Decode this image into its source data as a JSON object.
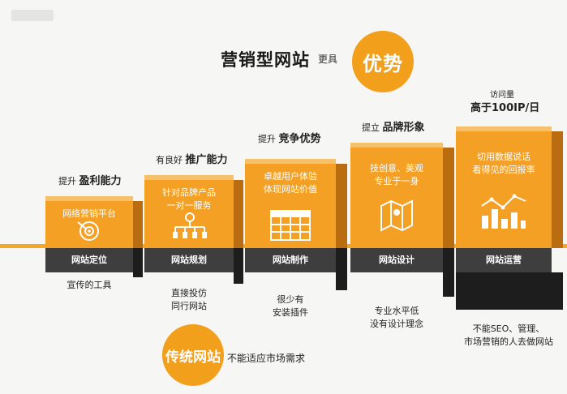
{
  "header": {
    "title": "营销型网站",
    "title_suffix": "更具",
    "badge": "优势"
  },
  "steps": [
    {
      "above_prefix": "提升",
      "above_bold": "盈利能力",
      "panel_lines": [
        "网络营销平台"
      ],
      "icon": "target-icon",
      "base_label": "网站定位",
      "below_lines": [
        "宣传的工具"
      ]
    },
    {
      "above_prefix": "有良好",
      "above_bold": "推广能力",
      "panel_lines": [
        "针对品牌产品",
        "一对一服务"
      ],
      "icon": "hierarchy-icon",
      "base_label": "网站规划",
      "below_lines": [
        "直接投仿",
        "同行网站"
      ]
    },
    {
      "above_prefix": "提升",
      "above_bold": "竞争优势",
      "panel_lines": [
        "卓越用户体验",
        "体现网站价值"
      ],
      "icon": "grid-icon",
      "base_label": "网站制作",
      "below_lines": [
        "很少有",
        "安装插件"
      ]
    },
    {
      "above_prefix": "提立",
      "above_bold": "品牌形象",
      "panel_lines": [
        "技创意、美观",
        "专业于一身"
      ],
      "icon": "map-icon",
      "base_label": "网站设计",
      "below_lines": [
        "专业水平低",
        "没有设计理念"
      ]
    },
    {
      "above_small": "访问量",
      "above_bold": "高于100IP/日",
      "panel_lines": [
        "切用数据说话",
        "看得见的回报率"
      ],
      "icon": "bar-chart-icon",
      "base_label": "网站运营",
      "below_lines": [
        "不能SEO、管理、",
        "市场营销的人去做网站"
      ]
    }
  ],
  "traditional": {
    "badge": "传统网站",
    "text": "不能适应市场需求"
  },
  "colors": {
    "accent": "#f4a024",
    "base": "#3e3e3e",
    "background": "#f6f6f4"
  }
}
